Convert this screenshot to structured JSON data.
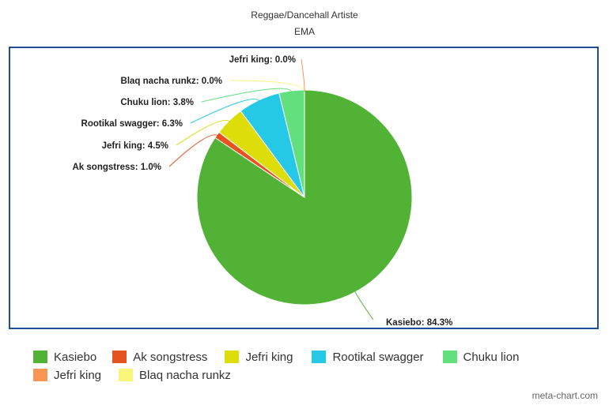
{
  "chart_data": {
    "type": "pie",
    "title": "Reggae/Dancehall Artiste",
    "subtitle": "EMA",
    "slices": [
      {
        "name": "Kasiebo",
        "label": "Kasiebo: 84.3%",
        "value": 84.3,
        "color": "#52b236"
      },
      {
        "name": "Ak songstress",
        "label": "Ak songstress: 1.0%",
        "value": 1.0,
        "color": "#e5531f"
      },
      {
        "name": "Jefri king",
        "label": "Jefri king: 4.5%",
        "value": 4.5,
        "color": "#dddd0c"
      },
      {
        "name": "Rootikal swagger",
        "label": "Rootikal swagger: 6.3%",
        "value": 6.3,
        "color": "#25c9e5"
      },
      {
        "name": "Chuku lion",
        "label": "Chuku lion: 3.8%",
        "value": 3.8,
        "color": "#62e07e"
      },
      {
        "name": "Blaq nacha runkz",
        "label": "Blaq nacha runkz: 0.0%",
        "value": 0.0,
        "color": "#f9f57a"
      },
      {
        "name": "Jefri king",
        "label": "Jefri king: 0.0%",
        "value": 0.0,
        "color": "#f89656"
      }
    ],
    "legend": [
      {
        "name": "Kasiebo",
        "color": "#52b236"
      },
      {
        "name": "Ak songstress",
        "color": "#e5531f"
      },
      {
        "name": "Jefri king",
        "color": "#dddd0c"
      },
      {
        "name": "Rootikal swagger",
        "color": "#25c9e5"
      },
      {
        "name": "Chuku lion",
        "color": "#62e07e"
      },
      {
        "name": "Jefri king",
        "color": "#f89656"
      },
      {
        "name": "Blaq nacha runkz",
        "color": "#f9f57a"
      }
    ],
    "legend_position": "bottom",
    "credit": "meta-chart.com"
  }
}
